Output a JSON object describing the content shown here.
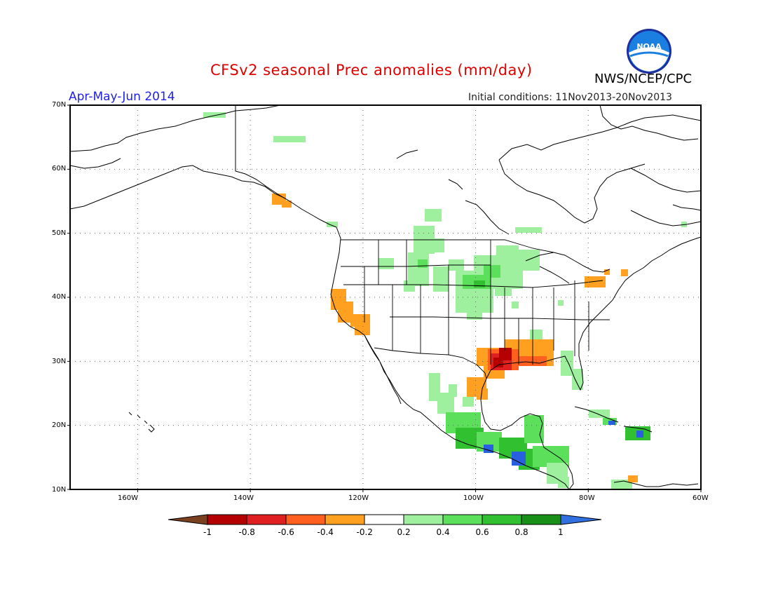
{
  "header": {
    "title": "CFSv2 seasonal Prec anomalies (mm/day)",
    "season": "Apr-May-Jun 2014",
    "initial_conditions": "Initial conditions: 11Nov2013-20Nov2013",
    "org": "NWS/NCEP/CPC",
    "logo_text": "NOAA"
  },
  "map": {
    "projection": "latitude-longitude",
    "lon_range": [
      -172,
      -60
    ],
    "lat_range": [
      10,
      70
    ],
    "grid": "dotted",
    "lat_ticks": [
      "70N",
      "60N",
      "50N",
      "40N",
      "30N",
      "20N",
      "10N"
    ],
    "lon_ticks": [
      "160W",
      "140W",
      "120W",
      "100W",
      "80W",
      "60W"
    ],
    "regions": [
      {
        "area": "central US plains",
        "category": "0.4-0.6",
        "color": "#66e866"
      },
      {
        "area": "Gulf coast Texas-Louisiana",
        "category": "-0.8 to -0.6",
        "color": "#d00000"
      },
      {
        "area": "California",
        "category": "-0.4 to -0.2",
        "color": "#f0a020"
      },
      {
        "area": "southern Mexico / Central America",
        "category": "> 1",
        "color": "#2860e0"
      },
      {
        "area": "Hispaniola",
        "category": "0.6-0.8",
        "color": "#24b024"
      }
    ]
  },
  "colorbar": {
    "labels": [
      "-1",
      "-0.8",
      "-0.6",
      "-0.4",
      "-0.2",
      "0.2",
      "0.4",
      "0.6",
      "0.8",
      "1"
    ],
    "colors": [
      "#7a4020",
      "#b40000",
      "#e02020",
      "#ff6020",
      "#ffa020",
      "#ffffff",
      "#9ef09e",
      "#5ce05c",
      "#30c030",
      "#189018",
      "#3070e0"
    ]
  }
}
